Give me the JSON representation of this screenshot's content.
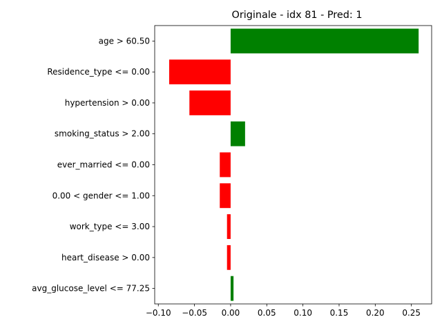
{
  "chart_data": {
    "type": "bar",
    "orientation": "horizontal",
    "title": "Originale - idx 81 - Pred: 1",
    "xlabel": "",
    "ylabel": "",
    "categories": [
      "age > 60.50",
      "Residence_type <= 0.00",
      "hypertension > 0.00",
      "smoking_status > 2.00",
      "ever_married <= 0.00",
      "0.00 < gender <= 1.00",
      "work_type <= 3.00",
      "heart_disease > 0.00",
      "avg_glucose_level <= 77.25"
    ],
    "values": [
      0.26,
      -0.085,
      -0.057,
      0.02,
      -0.015,
      -0.015,
      -0.005,
      -0.005,
      0.004
    ],
    "xlim": [
      -0.105,
      0.278
    ],
    "xticks": [
      -0.1,
      -0.05,
      0.0,
      0.05,
      0.1,
      0.15,
      0.2,
      0.25
    ],
    "xtick_labels": [
      "−0.10",
      "−0.05",
      "0.00",
      "0.05",
      "0.10",
      "0.15",
      "0.20",
      "0.25"
    ],
    "grid": false,
    "legend": "none",
    "colors": {
      "positive": "#008000",
      "negative": "#ff0000"
    }
  }
}
